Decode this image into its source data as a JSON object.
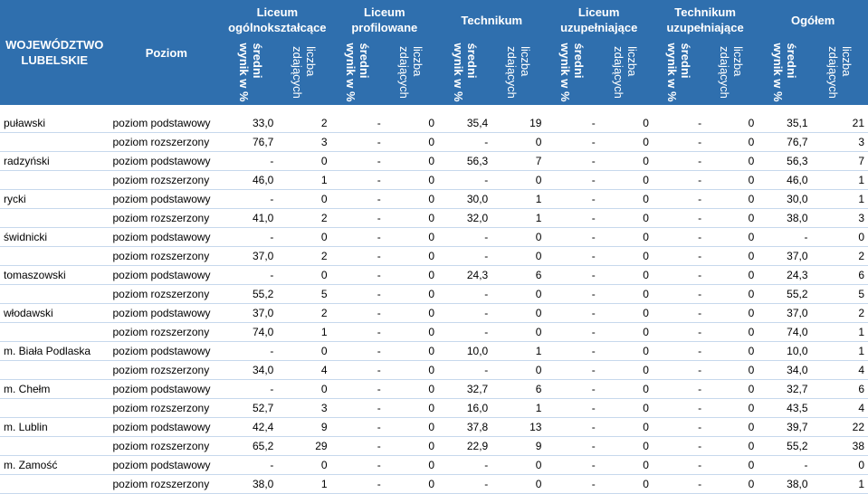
{
  "header": {
    "region": "WOJEWÓDZTWO LUBELSKIE",
    "level": "Poziom",
    "groups": [
      [
        "Liceum",
        "ogólnokształcące"
      ],
      [
        "Liceum",
        "profilowane"
      ],
      [
        "Technikum",
        ""
      ],
      [
        "Liceum",
        "uzupełniające"
      ],
      [
        "Technikum",
        "uzupełniające"
      ],
      [
        "Ogółem",
        ""
      ]
    ],
    "sub_result": [
      "średni",
      "wynik w %"
    ],
    "sub_count": [
      "liczba",
      "zdających"
    ]
  },
  "rows": [
    [
      "puławski",
      "poziom podstawowy",
      "33,0",
      "2",
      "-",
      "0",
      "35,4",
      "19",
      "-",
      "0",
      "-",
      "0",
      "35,1",
      "21"
    ],
    [
      "",
      "poziom rozszerzony",
      "76,7",
      "3",
      "-",
      "0",
      "-",
      "0",
      "-",
      "0",
      "-",
      "0",
      "76,7",
      "3"
    ],
    [
      "radzyński",
      "poziom podstawowy",
      "-",
      "0",
      "-",
      "0",
      "56,3",
      "7",
      "-",
      "0",
      "-",
      "0",
      "56,3",
      "7"
    ],
    [
      "",
      "poziom rozszerzony",
      "46,0",
      "1",
      "-",
      "0",
      "-",
      "0",
      "-",
      "0",
      "-",
      "0",
      "46,0",
      "1"
    ],
    [
      "rycki",
      "poziom podstawowy",
      "-",
      "0",
      "-",
      "0",
      "30,0",
      "1",
      "-",
      "0",
      "-",
      "0",
      "30,0",
      "1"
    ],
    [
      "",
      "poziom rozszerzony",
      "41,0",
      "2",
      "-",
      "0",
      "32,0",
      "1",
      "-",
      "0",
      "-",
      "0",
      "38,0",
      "3"
    ],
    [
      "świdnicki",
      "poziom podstawowy",
      "-",
      "0",
      "-",
      "0",
      "-",
      "0",
      "-",
      "0",
      "-",
      "0",
      "-",
      "0"
    ],
    [
      "",
      "poziom rozszerzony",
      "37,0",
      "2",
      "-",
      "0",
      "-",
      "0",
      "-",
      "0",
      "-",
      "0",
      "37,0",
      "2"
    ],
    [
      "tomaszowski",
      "poziom podstawowy",
      "-",
      "0",
      "-",
      "0",
      "24,3",
      "6",
      "-",
      "0",
      "-",
      "0",
      "24,3",
      "6"
    ],
    [
      "",
      "poziom rozszerzony",
      "55,2",
      "5",
      "-",
      "0",
      "-",
      "0",
      "-",
      "0",
      "-",
      "0",
      "55,2",
      "5"
    ],
    [
      "włodawski",
      "poziom podstawowy",
      "37,0",
      "2",
      "-",
      "0",
      "-",
      "0",
      "-",
      "0",
      "-",
      "0",
      "37,0",
      "2"
    ],
    [
      "",
      "poziom rozszerzony",
      "74,0",
      "1",
      "-",
      "0",
      "-",
      "0",
      "-",
      "0",
      "-",
      "0",
      "74,0",
      "1"
    ],
    [
      "m. Biała Podlaska",
      "poziom podstawowy",
      "-",
      "0",
      "-",
      "0",
      "10,0",
      "1",
      "-",
      "0",
      "-",
      "0",
      "10,0",
      "1"
    ],
    [
      "",
      "poziom rozszerzony",
      "34,0",
      "4",
      "-",
      "0",
      "-",
      "0",
      "-",
      "0",
      "-",
      "0",
      "34,0",
      "4"
    ],
    [
      "m. Chełm",
      "poziom podstawowy",
      "-",
      "0",
      "-",
      "0",
      "32,7",
      "6",
      "-",
      "0",
      "-",
      "0",
      "32,7",
      "6"
    ],
    [
      "",
      "poziom rozszerzony",
      "52,7",
      "3",
      "-",
      "0",
      "16,0",
      "1",
      "-",
      "0",
      "-",
      "0",
      "43,5",
      "4"
    ],
    [
      "m. Lublin",
      "poziom podstawowy",
      "42,4",
      "9",
      "-",
      "0",
      "37,8",
      "13",
      "-",
      "0",
      "-",
      "0",
      "39,7",
      "22"
    ],
    [
      "",
      "poziom rozszerzony",
      "65,2",
      "29",
      "-",
      "0",
      "22,9",
      "9",
      "-",
      "0",
      "-",
      "0",
      "55,2",
      "38"
    ],
    [
      "m. Zamość",
      "poziom podstawowy",
      "-",
      "0",
      "-",
      "0",
      "-",
      "0",
      "-",
      "0",
      "-",
      "0",
      "-",
      "0"
    ],
    [
      "",
      "poziom rozszerzony",
      "38,0",
      "1",
      "-",
      "0",
      "-",
      "0",
      "-",
      "0",
      "-",
      "0",
      "38,0",
      "1"
    ]
  ]
}
